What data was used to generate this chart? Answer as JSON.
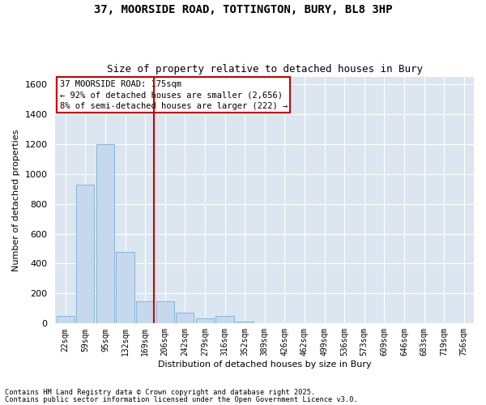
{
  "title_line1": "37, MOORSIDE ROAD, TOTTINGTON, BURY, BL8 3HP",
  "title_line2": "Size of property relative to detached houses in Bury",
  "xlabel": "Distribution of detached houses by size in Bury",
  "ylabel": "Number of detached properties",
  "bar_color": "#c5d8ee",
  "bar_edge_color": "#7aafd4",
  "background_color": "#dce6f0",
  "grid_color": "#ffffff",
  "categories": [
    "22sqm",
    "59sqm",
    "95sqm",
    "132sqm",
    "169sqm",
    "206sqm",
    "242sqm",
    "279sqm",
    "316sqm",
    "352sqm",
    "389sqm",
    "426sqm",
    "462sqm",
    "499sqm",
    "536sqm",
    "573sqm",
    "609sqm",
    "646sqm",
    "683sqm",
    "719sqm",
    "756sqm"
  ],
  "values": [
    50,
    930,
    1200,
    480,
    150,
    148,
    70,
    35,
    50,
    12,
    0,
    0,
    0,
    0,
    0,
    0,
    0,
    0,
    0,
    0,
    0
  ],
  "vline_bin_index": 4,
  "annotation_text": "37 MOORSIDE ROAD: 175sqm\n← 92% of detached houses are smaller (2,656)\n8% of semi-detached houses are larger (222) →",
  "annotation_box_color": "#ffffff",
  "annotation_edge_color": "#cc0000",
  "vline_color": "#cc0000",
  "ylim": [
    0,
    1650
  ],
  "yticks": [
    0,
    200,
    400,
    600,
    800,
    1000,
    1200,
    1400,
    1600
  ],
  "footnote1": "Contains HM Land Registry data © Crown copyright and database right 2025.",
  "footnote2": "Contains public sector information licensed under the Open Government Licence v3.0."
}
